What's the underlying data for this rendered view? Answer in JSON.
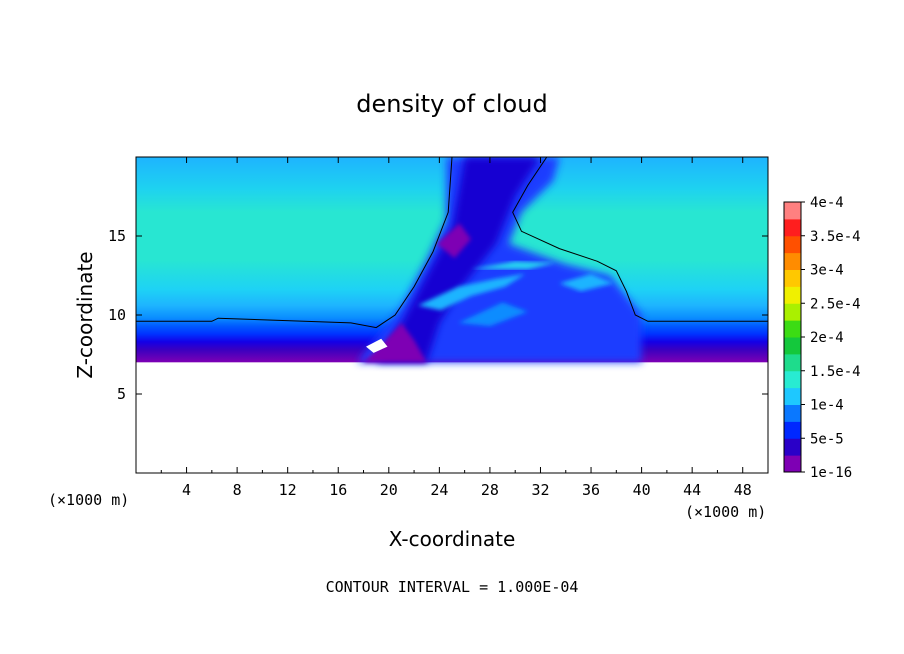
{
  "chart_data": {
    "type": "heatmap",
    "title": "density of cloud",
    "xlabel": "X-coordinate",
    "ylabel": "Z-coordinate",
    "x_unit_label": "(×1000 m)",
    "y_unit_label": "(×1000 m)",
    "footer": "CONTOUR INTERVAL = 1.000E-04",
    "xlim": [
      0,
      50
    ],
    "ylim": [
      0,
      20
    ],
    "x_ticks": [
      4,
      8,
      12,
      16,
      20,
      24,
      28,
      32,
      36,
      40,
      44,
      48
    ],
    "y_ticks": [
      5,
      10,
      15
    ],
    "colorbar": {
      "labels": [
        "1e-16",
        "5e-5",
        "1e-4",
        "1.5e-4",
        "2e-4",
        "2.5e-4",
        "3e-4",
        "3.5e-4",
        "4e-4"
      ],
      "colors": [
        "#7e00b4",
        "#2a00c8",
        "#0028ff",
        "#0a78ff",
        "#1ec8ff",
        "#28ebd2",
        "#1edc8c",
        "#14c83c",
        "#3cdc14",
        "#aaf000",
        "#f0f000",
        "#ffc800",
        "#ff8c00",
        "#ff5000",
        "#ff1e1e",
        "#ff8080"
      ]
    },
    "region": {
      "cloud_base_z": 7.0,
      "cloud_free_below": "white",
      "profile": [
        {
          "z": 7.0,
          "color": "#7e00b4"
        },
        {
          "z": 7.8,
          "color": "#3a00c0"
        },
        {
          "z": 8.3,
          "color": "#1400e6"
        },
        {
          "z": 8.8,
          "color": "#0032ff"
        },
        {
          "z": 9.3,
          "color": "#005aff"
        },
        {
          "z": 9.8,
          "color": "#0a8cff"
        },
        {
          "z": 10.6,
          "color": "#1eb4ff"
        },
        {
          "z": 11.6,
          "color": "#1ed2f5"
        },
        {
          "z": 13.5,
          "color": "#28e6d2"
        },
        {
          "z": 16.5,
          "color": "#28e6d2"
        },
        {
          "z": 18.0,
          "color": "#1ed2f0"
        },
        {
          "z": 20.0,
          "color": "#1eb4ff"
        }
      ],
      "contour_line_z": 9.6,
      "plume_x_range": [
        17,
        40
      ]
    }
  }
}
